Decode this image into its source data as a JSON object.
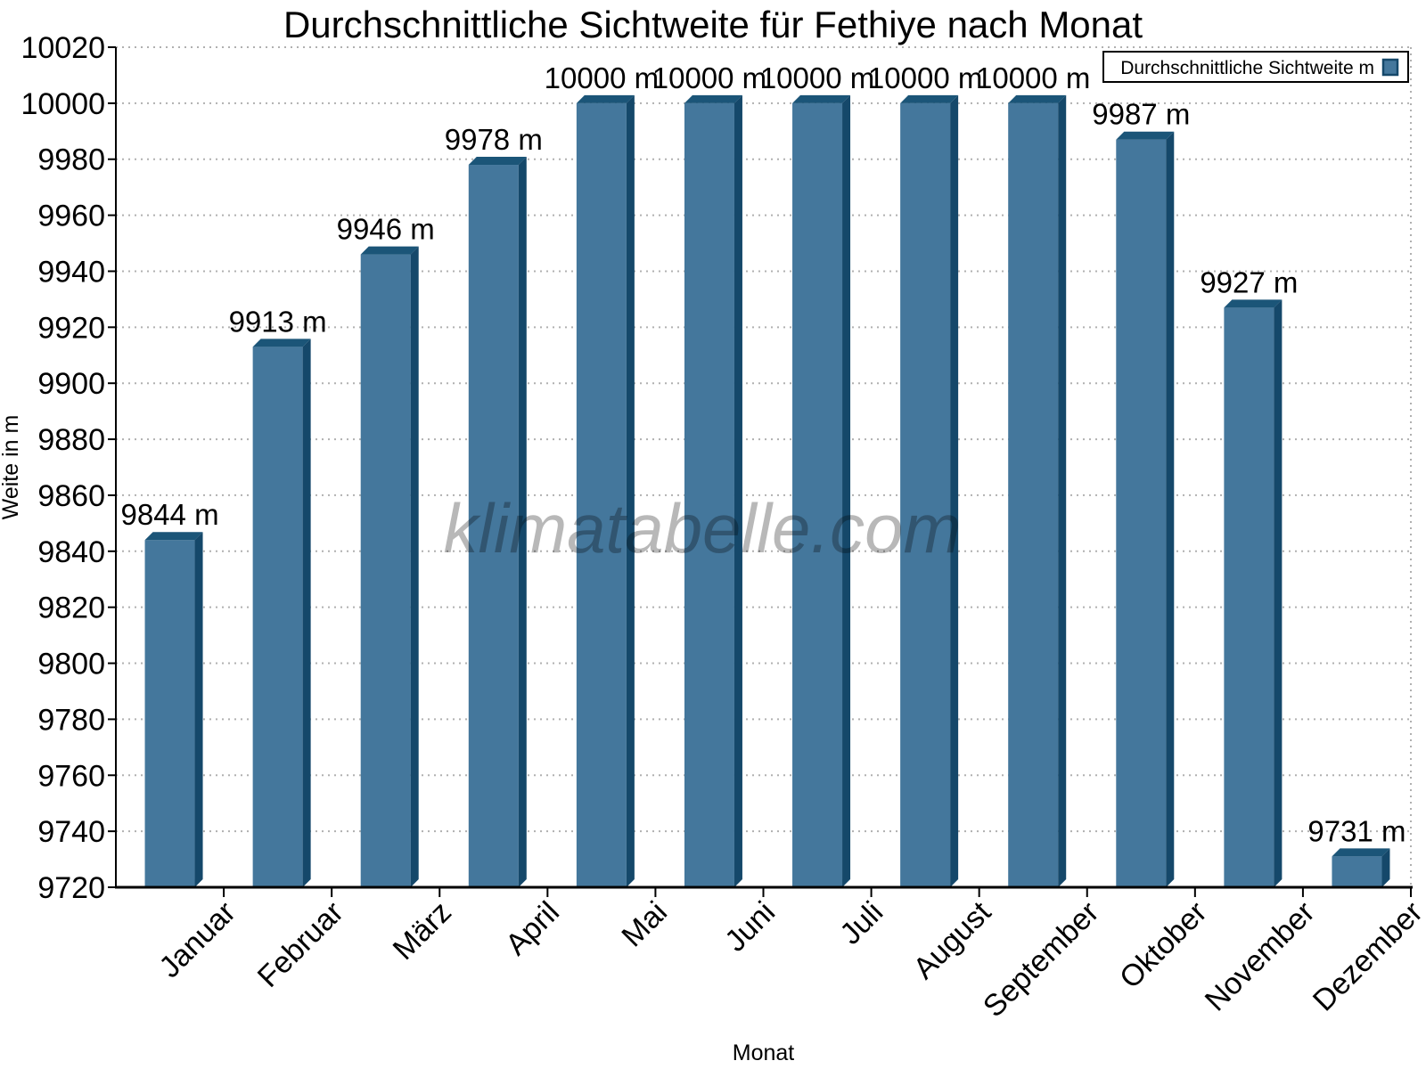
{
  "page": {
    "watermark": "klimatabelle.com"
  },
  "chart_data": {
    "type": "bar",
    "title": "Durchschnittliche Sichtweite für Fethiye nach Monat",
    "xlabel": "Monat",
    "ylabel": "Weite in m",
    "categories": [
      "Januar",
      "Februar",
      "März",
      "April",
      "Mai",
      "Juni",
      "Juli",
      "August",
      "September",
      "Oktober",
      "November",
      "Dezember"
    ],
    "series": [
      {
        "name": "Durchschnittliche Sichtweite m",
        "values": [
          9844,
          9913,
          9946,
          9978,
          10000,
          10000,
          10000,
          10000,
          10000,
          9987,
          9927,
          9731
        ]
      }
    ],
    "value_unit": "m",
    "value_labels": [
      "9844 m",
      "9913 m",
      "9946 m",
      "9978 m",
      "10000 m",
      "10000 m",
      "10000 m",
      "10000 m",
      "10000 m",
      "9987 m",
      "9927 m",
      "9731 m"
    ],
    "ylim": [
      9720,
      10020
    ],
    "ytick_step": 20,
    "ytick_labels": [
      "9720",
      "9740",
      "9760",
      "9780",
      "9800",
      "9820",
      "9840",
      "9860",
      "9880",
      "9900",
      "9920",
      "9940",
      "9960",
      "9980",
      "10000",
      "10020"
    ],
    "grid": "horizontal-dotted",
    "legend_position": "top-right",
    "legend_label": "Durchschnittliche Sichtweite m",
    "colors": {
      "bar_front": "#44779C",
      "bar_top": "#1B5578",
      "bar_side": "#15486A",
      "grid": "#b0b0b0",
      "axis": "#000000",
      "axis_title": "#5B6670",
      "watermark": "#3C3C3C",
      "legend_border": "#000000",
      "legend_bg": "#ffffff"
    }
  }
}
